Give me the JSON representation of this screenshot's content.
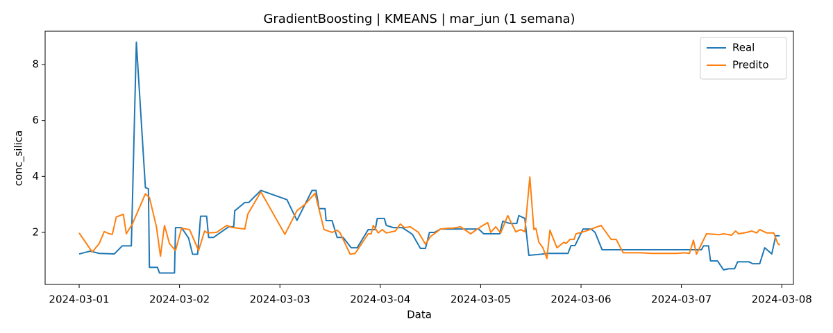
{
  "chart_data": {
    "type": "line",
    "title": "GradientBoosting | KMEANS | mar_jun (1 semana)",
    "x_label": "Data",
    "y_label": "conc_silica",
    "xlim": [
      -0.339,
      7.116
    ],
    "ylim": [
      0.14,
      9.19
    ],
    "xticks": [
      {
        "value": 0,
        "label": "2024-03-01"
      },
      {
        "value": 1,
        "label": "2024-03-02"
      },
      {
        "value": 2,
        "label": "2024-03-03"
      },
      {
        "value": 3,
        "label": "2024-03-04"
      },
      {
        "value": 4,
        "label": "2024-03-05"
      },
      {
        "value": 5,
        "label": "2024-03-06"
      },
      {
        "value": 6,
        "label": "2024-03-07"
      },
      {
        "value": 7,
        "label": "2024-03-08"
      }
    ],
    "yticks": [
      2,
      4,
      6,
      8
    ],
    "legend": "upper right",
    "grid": false,
    "series": [
      {
        "name": "Real",
        "color": "#1f77b4",
        "x": [
          0.0,
          0.11,
          0.2,
          0.35,
          0.43,
          0.52,
          0.57,
          0.66,
          0.69,
          0.7,
          0.78,
          0.8,
          0.95,
          0.96,
          1.02,
          1.09,
          1.13,
          1.18,
          1.21,
          1.27,
          1.29,
          1.34,
          1.41,
          1.49,
          1.54,
          1.55,
          1.65,
          1.69,
          1.81,
          2.07,
          2.17,
          2.32,
          2.36,
          2.39,
          2.45,
          2.46,
          2.52,
          2.57,
          2.63,
          2.71,
          2.77,
          2.88,
          2.95,
          2.97,
          3.04,
          3.06,
          3.13,
          3.22,
          3.32,
          3.4,
          3.45,
          3.49,
          3.54,
          3.6,
          3.98,
          4.03,
          4.19,
          4.22,
          4.29,
          4.36,
          4.38,
          4.44,
          4.48,
          4.6,
          4.67,
          4.87,
          4.9,
          4.94,
          5.02,
          5.1,
          5.14,
          5.21,
          5.3,
          5.99,
          6.2,
          6.22,
          6.27,
          6.29,
          6.36,
          6.42,
          6.47,
          6.53,
          6.56,
          6.67,
          6.71,
          6.78,
          6.83,
          6.9,
          6.94,
          6.98
        ],
        "values": [
          1.23,
          1.33,
          1.25,
          1.23,
          1.52,
          1.52,
          8.8,
          3.6,
          3.56,
          0.75,
          0.75,
          0.55,
          0.55,
          2.17,
          2.17,
          1.8,
          1.22,
          1.22,
          2.58,
          2.58,
          1.82,
          1.82,
          2.0,
          2.2,
          2.2,
          2.77,
          3.07,
          3.07,
          3.5,
          3.17,
          2.43,
          3.5,
          3.5,
          2.85,
          2.85,
          2.42,
          2.42,
          1.82,
          1.82,
          1.45,
          1.45,
          2.1,
          2.1,
          2.5,
          2.5,
          2.25,
          2.17,
          2.17,
          1.93,
          1.43,
          1.43,
          2.0,
          2.0,
          2.12,
          2.12,
          1.95,
          1.95,
          2.4,
          2.32,
          2.32,
          2.6,
          2.5,
          1.18,
          1.22,
          1.25,
          1.25,
          1.53,
          1.53,
          2.12,
          2.12,
          2.0,
          1.38,
          1.38,
          1.38,
          1.38,
          1.52,
          1.52,
          0.98,
          0.98,
          0.66,
          0.7,
          0.7,
          0.95,
          0.95,
          0.88,
          0.88,
          1.45,
          1.23,
          1.88,
          1.88
        ]
      },
      {
        "name": "Predito",
        "color": "#ff7f0e",
        "x": [
          0.0,
          0.13,
          0.2,
          0.25,
          0.3,
          0.33,
          0.37,
          0.44,
          0.47,
          0.53,
          0.66,
          0.7,
          0.77,
          0.81,
          0.85,
          0.9,
          0.96,
          1.02,
          1.1,
          1.19,
          1.25,
          1.28,
          1.37,
          1.47,
          1.52,
          1.65,
          1.68,
          1.81,
          2.05,
          2.17,
          2.25,
          2.35,
          2.44,
          2.52,
          2.57,
          2.6,
          2.7,
          2.75,
          2.88,
          2.91,
          2.93,
          2.98,
          3.02,
          3.06,
          3.15,
          3.2,
          3.24,
          3.3,
          3.38,
          3.45,
          3.5,
          3.6,
          3.68,
          3.72,
          3.8,
          3.9,
          4.0,
          4.07,
          4.1,
          4.15,
          4.2,
          4.27,
          4.35,
          4.4,
          4.44,
          4.49,
          4.53,
          4.55,
          4.58,
          4.62,
          4.66,
          4.69,
          4.76,
          4.83,
          4.85,
          4.89,
          4.93,
          4.95,
          5.05,
          5.2,
          5.3,
          5.35,
          5.42,
          5.6,
          5.7,
          5.95,
          6.03,
          6.08,
          6.12,
          6.15,
          6.25,
          6.38,
          6.42,
          6.5,
          6.54,
          6.57,
          6.65,
          6.7,
          6.75,
          6.78,
          6.85,
          6.92,
          6.96,
          6.98
        ],
        "values": [
          1.98,
          1.3,
          1.6,
          2.03,
          1.95,
          1.93,
          2.55,
          2.65,
          1.95,
          2.3,
          3.38,
          3.25,
          2.2,
          1.15,
          2.25,
          1.6,
          1.35,
          2.15,
          2.1,
          1.35,
          2.05,
          1.98,
          2.0,
          2.25,
          2.18,
          2.12,
          2.65,
          3.45,
          1.93,
          2.78,
          3.0,
          3.4,
          2.1,
          2.0,
          2.08,
          1.98,
          1.22,
          1.25,
          1.95,
          1.95,
          2.25,
          1.98,
          2.1,
          1.98,
          2.05,
          2.3,
          2.17,
          2.2,
          2.0,
          1.58,
          1.85,
          2.12,
          2.15,
          2.15,
          2.2,
          1.95,
          2.2,
          2.35,
          2.0,
          2.2,
          1.98,
          2.6,
          2.02,
          2.1,
          2.02,
          3.98,
          2.1,
          2.15,
          1.65,
          1.45,
          1.07,
          2.08,
          1.45,
          1.65,
          1.6,
          1.75,
          1.75,
          1.95,
          2.05,
          2.25,
          1.75,
          1.75,
          1.27,
          1.27,
          1.25,
          1.25,
          1.27,
          1.25,
          1.72,
          1.22,
          1.95,
          1.92,
          1.95,
          1.9,
          2.05,
          1.95,
          2.0,
          2.05,
          1.98,
          2.1,
          1.98,
          1.98,
          1.6,
          1.55
        ]
      }
    ]
  }
}
